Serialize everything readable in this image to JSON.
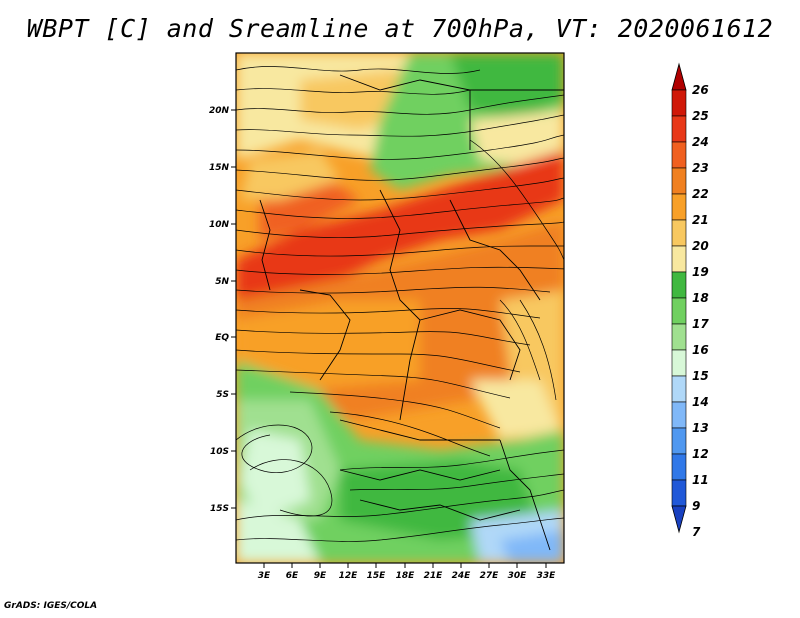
{
  "title": "WBPT [C] and Sreamline at 700hPa, VT: 2020061612",
  "footer": "GrADS: IGES/COLA",
  "lat_ticks": [
    "20N",
    "15N",
    "10N",
    "5N",
    "EQ",
    "5S",
    "10S",
    "15S"
  ],
  "lon_ticks": [
    "3E",
    "6E",
    "9E",
    "12E",
    "15E",
    "18E",
    "21E",
    "24E",
    "27E",
    "30E",
    "33E"
  ],
  "colorbar": {
    "levels": [
      "26",
      "25",
      "24",
      "23",
      "22",
      "21",
      "20",
      "19",
      "18",
      "17",
      "16",
      "15",
      "14",
      "13",
      "12",
      "11",
      "9",
      "7"
    ],
    "colors": [
      "#b00000",
      "#d01808",
      "#e83818",
      "#f06020",
      "#f08020",
      "#f8a028",
      "#f8c860",
      "#f8e8a0",
      "#40b840",
      "#70d060",
      "#a0e090",
      "#d8f8d8",
      "#b0d8f8",
      "#80b8f8",
      "#5098f0",
      "#3078e8",
      "#2058d8",
      "#1840c0"
    ]
  },
  "chart_data": {
    "type": "heatmap",
    "variable": "Wet-bulb potential temperature (WBPT) with streamlines",
    "level": "700hPa",
    "valid_time": "2020061612",
    "units": "C",
    "lat_range": [
      "15S",
      "20N"
    ],
    "lon_range": [
      "3E",
      "33E"
    ]
  }
}
